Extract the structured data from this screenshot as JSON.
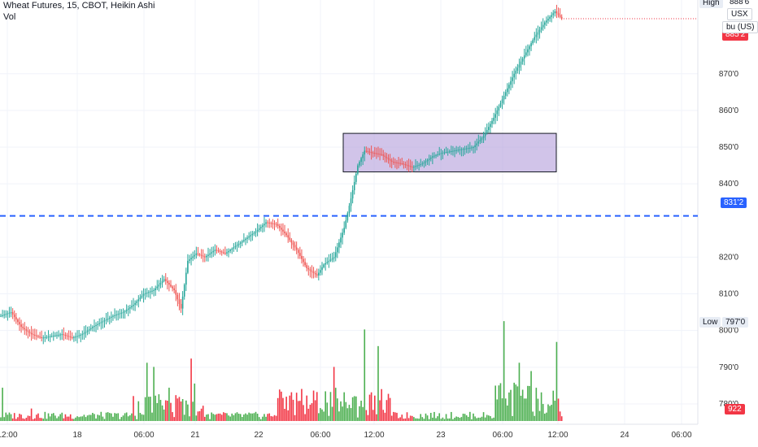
{
  "legend": {
    "title": "Wheat Futures, 15, CBOT, Heikin Ashi",
    "vol": "Vol"
  },
  "price_axis": {
    "ticks": [
      "870'0",
      "860'0",
      "850'0",
      "840'0",
      "820'0",
      "810'0",
      "800'0",
      "790'0",
      "780'0"
    ],
    "tick_values": [
      870,
      860,
      850,
      840,
      820,
      810,
      800,
      790,
      780
    ],
    "high_label": "High",
    "high_value": "888'6",
    "low_label": "Low",
    "low_value": "797'0",
    "last_price_partial": "885'2",
    "currency": "USX",
    "unit": "bu (US)",
    "line_level_label": "831'2",
    "line_level": 831.25,
    "volume_label": "922"
  },
  "time_axis": {
    "labels": [
      "12:00",
      "18",
      "06:00",
      "21",
      "22",
      "06:00",
      "12:00",
      "23",
      "06:00",
      "12:00",
      "24",
      "06:00"
    ]
  },
  "colors": {
    "up": "#26a69a",
    "down": "#ef5350",
    "vol_up": "#4caf50",
    "vol_down": "#f23645",
    "hline": "#2962ff",
    "box_fill": "#b39ddb"
  },
  "chart_data": {
    "type": "candlestick",
    "title": "Wheat Futures, 15, CBOT, Heikin Ashi",
    "y_range": [
      776,
      889
    ],
    "horizontal_line": 831.25,
    "highlight_box": {
      "price_top": 853.75,
      "price_bottom": 843.25
    },
    "close_path": [
      [
        0,
        804
      ],
      [
        6,
        805
      ],
      [
        12,
        801
      ],
      [
        18,
        799
      ],
      [
        24,
        798
      ],
      [
        30,
        798.5
      ],
      [
        36,
        799
      ],
      [
        42,
        798
      ],
      [
        48,
        799
      ],
      [
        54,
        801
      ],
      [
        60,
        802.5
      ],
      [
        66,
        804
      ],
      [
        72,
        805
      ],
      [
        78,
        807
      ],
      [
        84,
        810
      ],
      [
        90,
        811
      ],
      [
        96,
        814
      ],
      [
        102,
        811
      ],
      [
        106,
        806
      ],
      [
        110,
        819
      ],
      [
        115,
        821
      ],
      [
        120,
        820
      ],
      [
        126,
        822
      ],
      [
        132,
        821
      ],
      [
        138,
        823
      ],
      [
        144,
        825
      ],
      [
        150,
        827
      ],
      [
        156,
        829.5
      ],
      [
        162,
        829
      ],
      [
        168,
        826
      ],
      [
        174,
        822
      ],
      [
        180,
        817
      ],
      [
        186,
        815
      ],
      [
        190,
        818
      ],
      [
        196,
        820
      ],
      [
        202,
        828
      ],
      [
        206,
        836
      ],
      [
        210,
        845
      ],
      [
        214,
        849
      ],
      [
        218,
        848.5
      ],
      [
        224,
        848
      ],
      [
        230,
        846
      ],
      [
        236,
        845.5
      ],
      [
        242,
        844.5
      ],
      [
        248,
        845.5
      ],
      [
        254,
        847.5
      ],
      [
        260,
        848.5
      ],
      [
        266,
        849
      ],
      [
        272,
        849.5
      ],
      [
        278,
        850
      ],
      [
        284,
        853
      ],
      [
        290,
        858
      ],
      [
        296,
        864
      ],
      [
        302,
        870
      ],
      [
        308,
        875
      ],
      [
        314,
        880
      ],
      [
        320,
        884
      ],
      [
        326,
        887
      ],
      [
        330,
        885
      ]
    ],
    "volume": [
      {
        "i": 1,
        "v": 8,
        "up": true
      },
      {
        "i": 18,
        "v": 3,
        "up": false
      },
      {
        "i": 36,
        "v": 2,
        "up": true
      },
      {
        "i": 78,
        "v": 6,
        "up": false
      },
      {
        "i": 86,
        "v": 14,
        "up": true
      },
      {
        "i": 90,
        "v": 13,
        "up": true
      },
      {
        "i": 99,
        "v": 8,
        "up": true
      },
      {
        "i": 112,
        "v": 15,
        "up": false
      },
      {
        "i": 114,
        "v": 9,
        "up": true
      },
      {
        "i": 196,
        "v": 13,
        "up": false
      },
      {
        "i": 214,
        "v": 22,
        "up": true
      },
      {
        "i": 222,
        "v": 18,
        "up": true
      },
      {
        "i": 296,
        "v": 24,
        "up": true
      },
      {
        "i": 305,
        "v": 14,
        "up": true
      },
      {
        "i": 312,
        "v": 12,
        "up": true
      },
      {
        "i": 327,
        "v": 19,
        "up": true
      }
    ],
    "vol_max": 25
  }
}
